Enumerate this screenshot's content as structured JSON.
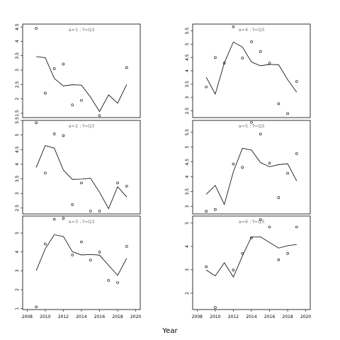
{
  "xlabel": "Year",
  "chart_data": [
    {
      "type": "line",
      "title": "a=1 : f=Q3",
      "xlim": [
        2007.5,
        2020.5
      ],
      "ylim": [
        1.35,
        4.6
      ],
      "xticks": [
        2008,
        2010,
        2012,
        2014,
        2016,
        2018,
        2020
      ],
      "yticks": [
        1.5,
        2.0,
        2.5,
        3.0,
        3.5,
        4.0,
        4.5
      ],
      "series": [
        {
          "kind": "line",
          "x": [
            2009,
            2010,
            2011,
            2012,
            2013,
            2014,
            2015,
            2016,
            2017,
            2018,
            2019
          ],
          "y": [
            3.47,
            3.43,
            2.71,
            2.45,
            2.49,
            2.48,
            2.06,
            1.56,
            2.14,
            1.85,
            2.5
          ]
        },
        {
          "kind": "points",
          "x": [
            2009,
            2010,
            2011,
            2012,
            2013,
            2014,
            2016,
            2019
          ],
          "y": [
            4.45,
            2.2,
            3.05,
            3.21,
            1.79,
            1.95,
            1.42,
            3.09
          ]
        }
      ]
    },
    {
      "type": "line",
      "title": "a=4 : f=Q3",
      "xlim": [
        2007.5,
        2020.5
      ],
      "ylim": [
        2.25,
        5.75
      ],
      "xticks": [
        2008,
        2010,
        2012,
        2014,
        2016,
        2018,
        2020
      ],
      "yticks": [
        2.5,
        3.0,
        3.5,
        4.0,
        4.5,
        5.0,
        5.5
      ],
      "series": [
        {
          "kind": "line",
          "x": [
            2009,
            2010,
            2011,
            2012,
            2013,
            2014,
            2015,
            2016,
            2017,
            2018,
            2019
          ],
          "y": [
            3.76,
            3.13,
            4.3,
            5.08,
            4.89,
            4.33,
            4.19,
            4.24,
            4.23,
            3.67,
            3.2
          ]
        },
        {
          "kind": "points",
          "x": [
            2009,
            2010,
            2011,
            2012,
            2013,
            2014,
            2015,
            2016,
            2017,
            2018,
            2019
          ],
          "y": [
            3.4,
            4.5,
            4.29,
            5.65,
            4.48,
            5.09,
            4.72,
            4.29,
            2.77,
            2.4,
            3.6
          ]
        }
      ]
    },
    {
      "type": "line",
      "title": "a=2 : f=Q3",
      "xlim": [
        2007.5,
        2020.5
      ],
      "ylim": [
        2.3,
        5.5
      ],
      "xticks": [
        2008,
        2010,
        2012,
        2014,
        2016,
        2018,
        2020
      ],
      "yticks": [
        2.5,
        3.0,
        3.5,
        4.0,
        4.5,
        5.0,
        5.5
      ],
      "series": [
        {
          "kind": "line",
          "x": [
            2009,
            2010,
            2011,
            2012,
            2013,
            2014,
            2015,
            2016,
            2017,
            2018,
            2019
          ],
          "y": [
            3.89,
            4.64,
            4.55,
            3.8,
            3.48,
            3.49,
            3.52,
            3.04,
            2.48,
            3.23,
            2.88
          ]
        },
        {
          "kind": "points",
          "x": [
            2009,
            2010,
            2011,
            2012,
            2013,
            2014,
            2015,
            2016,
            2018,
            2019
          ],
          "y": [
            5.42,
            3.7,
            5.04,
            4.98,
            2.62,
            3.36,
            2.4,
            2.4,
            3.36,
            3.25
          ]
        }
      ]
    },
    {
      "type": "line",
      "title": "a=5 : f=Q3",
      "xlim": [
        2007.5,
        2020.5
      ],
      "ylim": [
        2.75,
        5.9
      ],
      "xticks": [
        2008,
        2010,
        2012,
        2014,
        2016,
        2018,
        2020
      ],
      "yticks": [
        3.0,
        3.5,
        4.0,
        4.5,
        5.0,
        5.5
      ],
      "series": [
        {
          "kind": "line",
          "x": [
            2009,
            2010,
            2011,
            2012,
            2013,
            2014,
            2015,
            2016,
            2017,
            2018,
            2019
          ],
          "y": [
            3.41,
            3.71,
            3.07,
            4.17,
            4.96,
            4.9,
            4.48,
            4.34,
            4.41,
            4.44,
            3.86
          ]
        },
        {
          "kind": "points",
          "x": [
            2009,
            2010,
            2012,
            2013,
            2014,
            2015,
            2016,
            2017,
            2018,
            2019
          ],
          "y": [
            2.84,
            2.9,
            4.43,
            4.32,
            5.83,
            5.44,
            4.46,
            3.3,
            4.12,
            4.78
          ]
        }
      ]
    },
    {
      "type": "line",
      "title": "a=3 : f=Q3",
      "xlim": [
        2007.5,
        2020.5
      ],
      "ylim": [
        0.95,
        5.9
      ],
      "xticks": [
        2008,
        2010,
        2012,
        2014,
        2016,
        2018,
        2020
      ],
      "yticks": [
        1,
        2,
        3,
        4,
        5
      ],
      "series": [
        {
          "kind": "line",
          "x": [
            2009,
            2010,
            2011,
            2012,
            2013,
            2014,
            2015,
            2016,
            2017,
            2018,
            2019
          ],
          "y": [
            3.01,
            4.17,
            4.91,
            4.82,
            4.01,
            3.84,
            3.86,
            3.83,
            3.29,
            2.76,
            3.66
          ]
        },
        {
          "kind": "points",
          "x": [
            2009,
            2010,
            2011,
            2012,
            2013,
            2014,
            2015,
            2016,
            2017,
            2018,
            2019
          ],
          "y": [
            1.09,
            4.42,
            5.73,
            5.78,
            3.84,
            4.53,
            3.57,
            3.99,
            2.49,
            2.38,
            4.29
          ]
        }
      ]
    },
    {
      "type": "line",
      "title": "a=6 : f=Q3",
      "xlim": [
        2007.5,
        2020.5
      ],
      "ylim": [
        1.3,
        5.3
      ],
      "xticks": [
        2008,
        2010,
        2012,
        2014,
        2016,
        2018,
        2020
      ],
      "yticks": [
        2,
        3,
        4,
        5
      ],
      "series": [
        {
          "kind": "line",
          "x": [
            2009,
            2010,
            2011,
            2012,
            2013,
            2014,
            2015,
            2016,
            2017,
            2018,
            2019
          ],
          "y": [
            2.99,
            2.74,
            3.3,
            2.69,
            3.59,
            4.41,
            4.41,
            4.17,
            3.93,
            4.03,
            4.08
          ]
        },
        {
          "kind": "points",
          "x": [
            2009,
            2010,
            2012,
            2013,
            2014,
            2015,
            2016,
            2017,
            2018,
            2019
          ],
          "y": [
            3.13,
            1.39,
            2.99,
            3.7,
            4.37,
            5.15,
            4.83,
            3.43,
            3.7,
            4.83
          ]
        }
      ]
    }
  ]
}
